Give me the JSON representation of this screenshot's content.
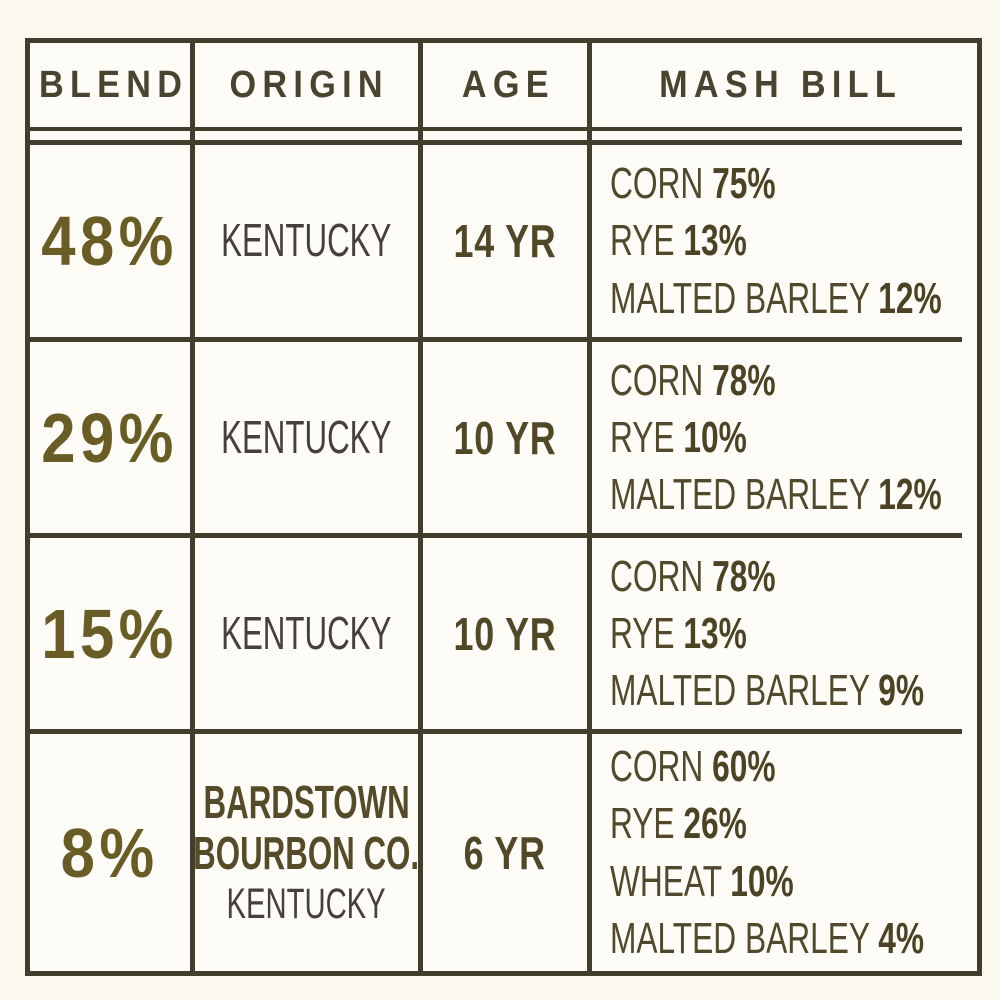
{
  "table": {
    "headers": [
      "BLEND",
      "ORIGIN",
      "AGE",
      "MASH BILL"
    ],
    "rows": [
      {
        "blend": "48%",
        "origin": [
          {
            "text": "KENTUCKY",
            "bold": false
          }
        ],
        "age": "14 YR",
        "mash": [
          {
            "grain": "CORN",
            "pct": "75%"
          },
          {
            "grain": "RYE",
            "pct": "13%"
          },
          {
            "grain": "MALTED BARLEY",
            "pct": "12%"
          }
        ]
      },
      {
        "blend": "29%",
        "origin": [
          {
            "text": "KENTUCKY",
            "bold": false
          }
        ],
        "age": "10 YR",
        "mash": [
          {
            "grain": "CORN",
            "pct": "78%"
          },
          {
            "grain": "RYE",
            "pct": "10%"
          },
          {
            "grain": "MALTED BARLEY",
            "pct": "12%"
          }
        ]
      },
      {
        "blend": "15%",
        "origin": [
          {
            "text": "KENTUCKY",
            "bold": false
          }
        ],
        "age": "10 YR",
        "mash": [
          {
            "grain": "CORN",
            "pct": "78%"
          },
          {
            "grain": "RYE",
            "pct": "13%"
          },
          {
            "grain": "MALTED BARLEY",
            "pct": "9%"
          }
        ]
      },
      {
        "blend": "8%",
        "origin": [
          {
            "text": "BARDSTOWN",
            "bold": true
          },
          {
            "text": "BOURBON CO.",
            "bold": true
          },
          {
            "text": "KENTUCKY",
            "bold": false
          }
        ],
        "age": "6 YR",
        "mash": [
          {
            "grain": "CORN",
            "pct": "60%"
          },
          {
            "grain": "RYE",
            "pct": "26%"
          },
          {
            "grain": "WHEAT",
            "pct": "10%"
          },
          {
            "grain": "MALTED BARLEY",
            "pct": "4%"
          }
        ]
      }
    ]
  },
  "colors": {
    "page_bg": "#fbf8ee",
    "cell_bg": "#fdfcf6",
    "line": "#433d2c",
    "header_text": "#4a4330",
    "blend_text": "#6a5c25",
    "origin_text": "#45403a",
    "origin_bold_text": "#554b28",
    "age_text": "#514828",
    "mash_text": "#52492c",
    "mash_pct_text": "#4c4325"
  }
}
